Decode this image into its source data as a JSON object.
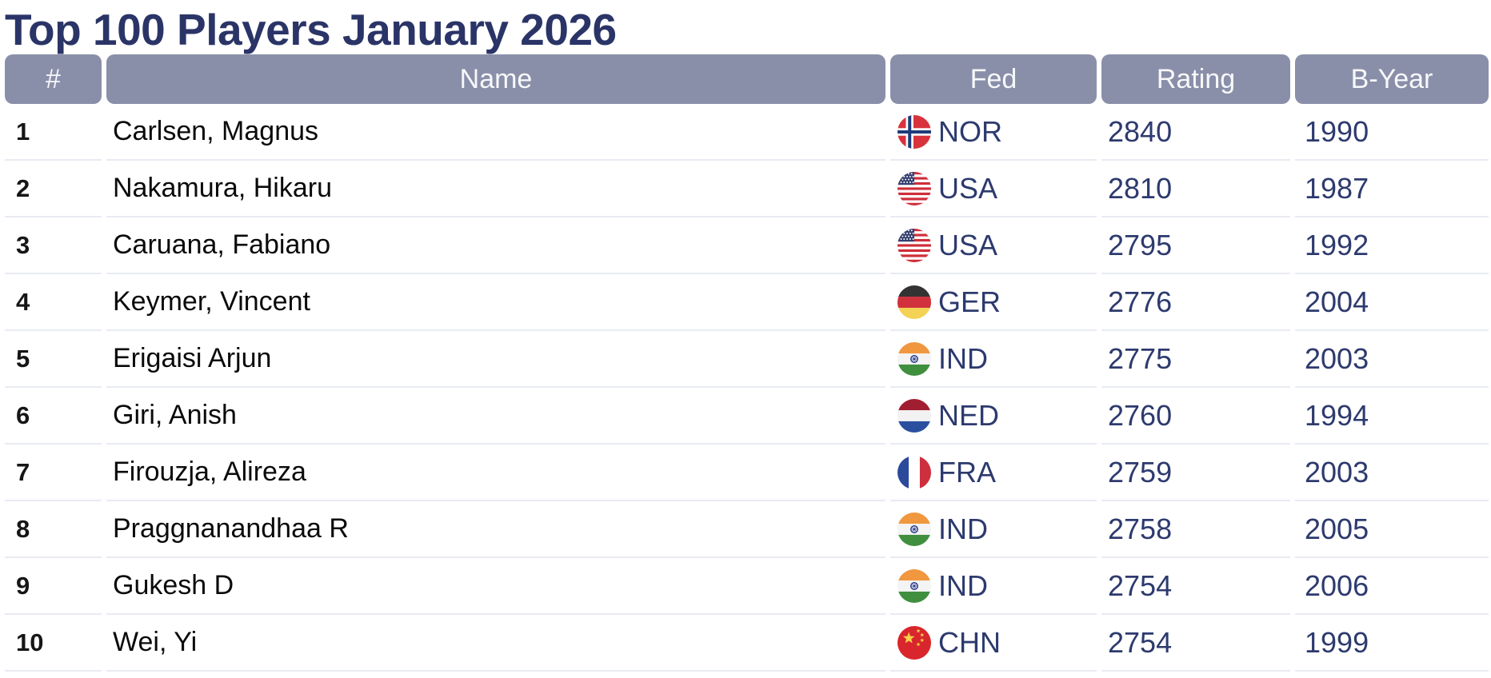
{
  "page": {
    "title": "Top 100 Players January 2026"
  },
  "colors": {
    "title_text": "#2b3467",
    "header_background": "#8a8fa9",
    "header_text": "#f7f8fa",
    "value_text": "#2d3a6e",
    "name_text": "#0a0a0a",
    "rank_text": "#161616",
    "row_divider": "#e8ebf2",
    "page_background": "#ffffff"
  },
  "table": {
    "columns": [
      {
        "key": "rank",
        "label": "#"
      },
      {
        "key": "name",
        "label": "Name"
      },
      {
        "key": "fed",
        "label": "Fed"
      },
      {
        "key": "rating",
        "label": "Rating"
      },
      {
        "key": "byear",
        "label": "B-Year"
      }
    ],
    "rows": [
      {
        "rank": 1,
        "name": "Carlsen, Magnus",
        "fed": "NOR",
        "flag_icon": "norway-flag-icon",
        "rating": 2840,
        "byear": 1990
      },
      {
        "rank": 2,
        "name": "Nakamura, Hikaru",
        "fed": "USA",
        "flag_icon": "usa-flag-icon",
        "rating": 2810,
        "byear": 1987
      },
      {
        "rank": 3,
        "name": "Caruana, Fabiano",
        "fed": "USA",
        "flag_icon": "usa-flag-icon",
        "rating": 2795,
        "byear": 1992
      },
      {
        "rank": 4,
        "name": "Keymer, Vincent",
        "fed": "GER",
        "flag_icon": "germany-flag-icon",
        "rating": 2776,
        "byear": 2004
      },
      {
        "rank": 5,
        "name": "Erigaisi Arjun",
        "fed": "IND",
        "flag_icon": "india-flag-icon",
        "rating": 2775,
        "byear": 2003
      },
      {
        "rank": 6,
        "name": "Giri, Anish",
        "fed": "NED",
        "flag_icon": "netherlands-flag-icon",
        "rating": 2760,
        "byear": 1994
      },
      {
        "rank": 7,
        "name": "Firouzja, Alireza",
        "fed": "FRA",
        "flag_icon": "france-flag-icon",
        "rating": 2759,
        "byear": 2003
      },
      {
        "rank": 8,
        "name": "Praggnanandhaa R",
        "fed": "IND",
        "flag_icon": "india-flag-icon",
        "rating": 2758,
        "byear": 2005
      },
      {
        "rank": 9,
        "name": "Gukesh D",
        "fed": "IND",
        "flag_icon": "india-flag-icon",
        "rating": 2754,
        "byear": 2006
      },
      {
        "rank": 10,
        "name": "Wei, Yi",
        "fed": "CHN",
        "flag_icon": "china-flag-icon",
        "rating": 2754,
        "byear": 1999
      }
    ]
  }
}
